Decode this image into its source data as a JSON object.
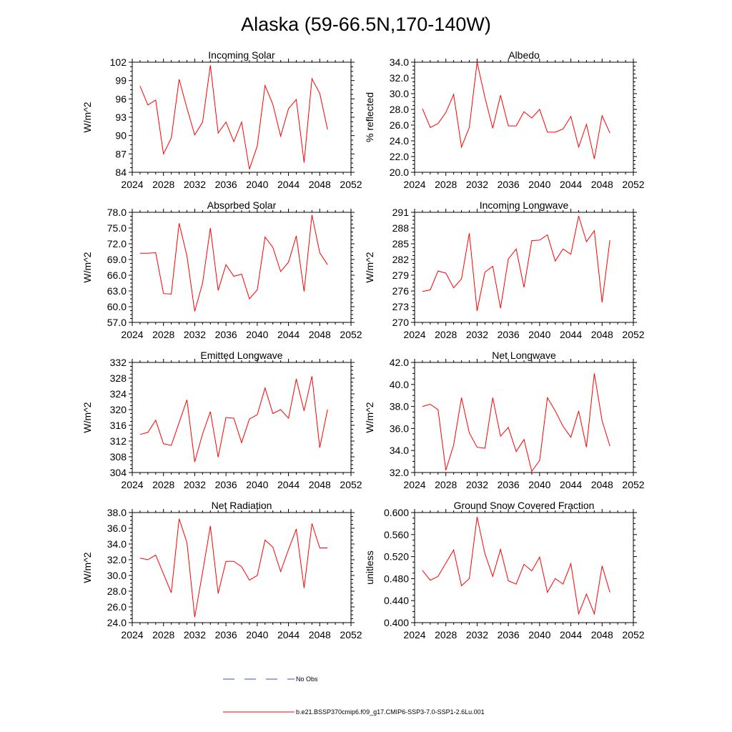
{
  "figure_title": "Alaska (59-66.5N,170-140W)",
  "colors": {
    "model_line": "#ff0000",
    "obs_line": "#3b4fc8",
    "axes": "#000000"
  },
  "legend": {
    "obs_label": "No Obs",
    "model_label": "b.e21.BSSP370cmip6.f09_g17.CMIP6-SSP3-7.0-SSP1-2.6Lu.001"
  },
  "chart_data": [
    {
      "type": "line",
      "title": "Incoming Solar",
      "ylabel": "W/m^2",
      "xlim": [
        2024,
        2052
      ],
      "xticks": [
        2024,
        2028,
        2032,
        2036,
        2040,
        2044,
        2048,
        2052
      ],
      "ylim": [
        84,
        102
      ],
      "yticks": [
        "84",
        "87",
        "90",
        "93",
        "96",
        "99",
        "102"
      ],
      "x": [
        2025,
        2026,
        2027,
        2028,
        2029,
        2030,
        2031,
        2032,
        2033,
        2034,
        2035,
        2036,
        2037,
        2038,
        2039,
        2040,
        2041,
        2042,
        2043,
        2044,
        2045,
        2046,
        2047,
        2048,
        2049
      ],
      "values": [
        98.1,
        95.0,
        95.8,
        87.0,
        89.6,
        99.2,
        94.5,
        90.1,
        92.2,
        101.5,
        90.4,
        92.2,
        89.0,
        92.2,
        84.5,
        88.3,
        98.2,
        95.1,
        89.9,
        94.4,
        95.9,
        85.6,
        99.3,
        96.9,
        91.0
      ]
    },
    {
      "type": "line",
      "title": "Albedo",
      "ylabel": "% reflected",
      "xlim": [
        2024,
        2052
      ],
      "xticks": [
        2024,
        2028,
        2032,
        2036,
        2040,
        2044,
        2048,
        2052
      ],
      "ylim": [
        20,
        34
      ],
      "yticks": [
        "20.0",
        "22.0",
        "24.0",
        "26.0",
        "28.0",
        "30.0",
        "32.0",
        "34.0"
      ],
      "x": [
        2025,
        2026,
        2027,
        2028,
        2029,
        2030,
        2031,
        2032,
        2033,
        2034,
        2035,
        2036,
        2037,
        2038,
        2039,
        2040,
        2041,
        2042,
        2043,
        2044,
        2045,
        2046,
        2047,
        2048,
        2049
      ],
      "values": [
        28.1,
        25.7,
        26.2,
        27.6,
        29.9,
        23.2,
        25.7,
        34.0,
        29.5,
        25.6,
        29.8,
        25.9,
        25.9,
        27.7,
        26.9,
        28.0,
        25.1,
        25.1,
        25.5,
        27.1,
        23.2,
        26.1,
        21.7,
        27.2,
        25.0
      ]
    },
    {
      "type": "line",
      "title": "Absorbed Solar",
      "ylabel": "W/m^2",
      "xlim": [
        2024,
        2052
      ],
      "xticks": [
        2024,
        2028,
        2032,
        2036,
        2040,
        2044,
        2048,
        2052
      ],
      "ylim": [
        57,
        78
      ],
      "yticks": [
        "57.0",
        "60.0",
        "63.0",
        "66.0",
        "69.0",
        "72.0",
        "75.0",
        "78.0"
      ],
      "x": [
        2025,
        2026,
        2027,
        2028,
        2029,
        2030,
        2031,
        2032,
        2033,
        2034,
        2035,
        2036,
        2037,
        2038,
        2039,
        2040,
        2041,
        2042,
        2043,
        2044,
        2045,
        2046,
        2047,
        2048,
        2049
      ],
      "values": [
        70.2,
        70.2,
        70.3,
        62.5,
        62.4,
        75.9,
        69.7,
        59.1,
        64.5,
        75.0,
        63.1,
        68.0,
        65.8,
        66.2,
        61.5,
        63.2,
        73.3,
        71.3,
        66.7,
        68.5,
        73.5,
        62.9,
        77.5,
        70.3,
        68.0
      ]
    },
    {
      "type": "line",
      "title": "Incoming Longwave",
      "ylabel": "W/m^2",
      "xlim": [
        2024,
        2052
      ],
      "xticks": [
        2024,
        2028,
        2032,
        2036,
        2040,
        2044,
        2048,
        2052
      ],
      "ylim": [
        270,
        291
      ],
      "yticks": [
        "270",
        "273",
        "276",
        "279",
        "282",
        "285",
        "288",
        "291"
      ],
      "x": [
        2025,
        2026,
        2027,
        2028,
        2029,
        2030,
        2031,
        2032,
        2033,
        2034,
        2035,
        2036,
        2037,
        2038,
        2039,
        2040,
        2041,
        2042,
        2043,
        2044,
        2045,
        2046,
        2047,
        2048,
        2049
      ],
      "values": [
        275.9,
        276.2,
        279.8,
        279.4,
        276.6,
        278.3,
        287.0,
        272.2,
        279.6,
        280.7,
        272.7,
        282.1,
        284.0,
        276.7,
        285.6,
        285.7,
        286.7,
        281.7,
        284.0,
        283.0,
        290.3,
        285.4,
        287.5,
        273.8,
        285.7
      ]
    },
    {
      "type": "line",
      "title": "Emitted Longwave",
      "ylabel": "W/m^2",
      "xlim": [
        2024,
        2052
      ],
      "xticks": [
        2024,
        2028,
        2032,
        2036,
        2040,
        2044,
        2048,
        2052
      ],
      "ylim": [
        304,
        332
      ],
      "yticks": [
        "304",
        "308",
        "312",
        "316",
        "320",
        "324",
        "328",
        "332"
      ],
      "x": [
        2025,
        2026,
        2027,
        2028,
        2029,
        2030,
        2031,
        2032,
        2033,
        2034,
        2035,
        2036,
        2037,
        2038,
        2039,
        2040,
        2041,
        2042,
        2043,
        2044,
        2045,
        2046,
        2047,
        2048,
        2049
      ],
      "values": [
        313.7,
        314.2,
        317.3,
        311.3,
        310.9,
        316.7,
        322.5,
        306.7,
        313.8,
        319.5,
        307.9,
        318.0,
        317.8,
        311.6,
        317.6,
        318.7,
        325.5,
        319.0,
        320.0,
        317.8,
        327.8,
        319.7,
        328.5,
        310.3,
        320.0
      ]
    },
    {
      "type": "line",
      "title": "Net Longwave",
      "ylabel": "W/m^2",
      "xlim": [
        2024,
        2052
      ],
      "xticks": [
        2024,
        2028,
        2032,
        2036,
        2040,
        2044,
        2048,
        2052
      ],
      "ylim": [
        32,
        42
      ],
      "yticks": [
        "32.0",
        "34.0",
        "36.0",
        "38.0",
        "40.0",
        "42.0"
      ],
      "x": [
        2025,
        2026,
        2027,
        2028,
        2029,
        2030,
        2031,
        2032,
        2033,
        2034,
        2035,
        2036,
        2037,
        2038,
        2039,
        2040,
        2041,
        2042,
        2043,
        2044,
        2045,
        2046,
        2047,
        2048,
        2049
      ],
      "values": [
        38.0,
        38.2,
        37.7,
        32.2,
        34.5,
        38.8,
        35.6,
        34.3,
        34.2,
        38.8,
        35.3,
        36.1,
        33.9,
        35.0,
        32.1,
        33.1,
        38.8,
        37.6,
        36.2,
        35.2,
        37.6,
        34.3,
        41.0,
        36.7,
        34.4
      ]
    },
    {
      "type": "line",
      "title": "Net Radiation",
      "ylabel": "W/m^2",
      "xlim": [
        2024,
        2052
      ],
      "xticks": [
        2024,
        2028,
        2032,
        2036,
        2040,
        2044,
        2048,
        2052
      ],
      "ylim": [
        24,
        38
      ],
      "yticks": [
        "24.0",
        "26.0",
        "28.0",
        "30.0",
        "32.0",
        "34.0",
        "36.0",
        "38.0"
      ],
      "x": [
        2025,
        2026,
        2027,
        2028,
        2029,
        2030,
        2031,
        2032,
        2033,
        2034,
        2035,
        2036,
        2037,
        2038,
        2039,
        2040,
        2041,
        2042,
        2043,
        2044,
        2045,
        2046,
        2047,
        2048,
        2049
      ],
      "values": [
        32.2,
        32.0,
        32.6,
        30.2,
        27.8,
        37.2,
        34.2,
        24.7,
        30.4,
        36.3,
        27.7,
        31.8,
        31.8,
        31.1,
        29.4,
        30.0,
        34.5,
        33.6,
        30.5,
        33.3,
        35.9,
        28.4,
        36.6,
        33.5,
        33.5
      ]
    },
    {
      "type": "line",
      "title": "Ground Snow Covered Fraction",
      "ylabel": "unitless",
      "xlim": [
        2024,
        2052
      ],
      "xticks": [
        2024,
        2028,
        2032,
        2036,
        2040,
        2044,
        2048,
        2052
      ],
      "ylim": [
        0.4,
        0.6
      ],
      "yticks": [
        "0.400",
        "0.440",
        "0.480",
        "0.520",
        "0.560",
        "0.600"
      ],
      "x": [
        2025,
        2026,
        2027,
        2028,
        2029,
        2030,
        2031,
        2032,
        2033,
        2034,
        2035,
        2036,
        2037,
        2038,
        2039,
        2040,
        2041,
        2042,
        2043,
        2044,
        2045,
        2046,
        2047,
        2048,
        2049
      ],
      "values": [
        0.495,
        0.477,
        0.484,
        0.508,
        0.532,
        0.467,
        0.48,
        0.592,
        0.525,
        0.484,
        0.533,
        0.476,
        0.47,
        0.506,
        0.494,
        0.519,
        0.455,
        0.48,
        0.47,
        0.507,
        0.416,
        0.452,
        0.416,
        0.503,
        0.455
      ]
    }
  ]
}
